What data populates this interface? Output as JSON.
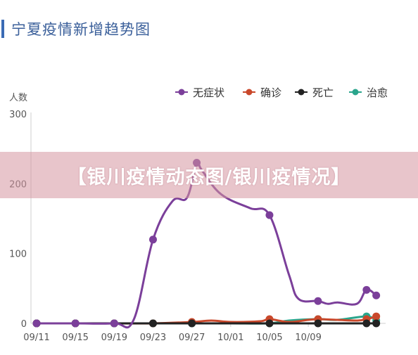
{
  "header": {
    "title": "宁夏疫情新增趋势图"
  },
  "banner": {
    "text": "【银川疫情动态图/银川疫情况】"
  },
  "chart_data": {
    "type": "line",
    "ylabel": "人数",
    "ylim": [
      0,
      300
    ],
    "yticks": [
      "0",
      "100",
      "200",
      "300"
    ],
    "xticks": [
      "09/11",
      "09/15",
      "09/19",
      "09/23",
      "09/27",
      "10/01",
      "10/05",
      "10/09"
    ],
    "x_start": "09/11",
    "legend_position": "top-right",
    "grid": false,
    "smooth": true,
    "series": [
      {
        "name": "无症状",
        "color": "#7b3f9a",
        "points": [
          [
            0,
            0
          ],
          [
            4,
            0
          ],
          [
            8,
            0
          ],
          [
            10,
            5
          ],
          [
            12,
            120
          ],
          [
            14,
            175
          ],
          [
            15.5,
            180
          ],
          [
            16.5,
            230
          ],
          [
            17,
            220
          ],
          [
            19,
            185
          ],
          [
            22,
            165
          ],
          [
            24,
            155
          ],
          [
            26,
            70
          ],
          [
            27,
            35
          ],
          [
            29,
            32
          ],
          [
            30,
            28
          ],
          [
            31,
            30
          ],
          [
            33,
            28
          ],
          [
            34,
            48
          ],
          [
            35,
            40
          ]
        ],
        "markers": [
          0,
          4,
          8,
          12,
          16.5,
          24,
          29,
          34,
          35
        ]
      },
      {
        "name": "确诊",
        "color": "#c9482b",
        "points": [
          [
            0,
            0
          ],
          [
            4,
            0
          ],
          [
            8,
            0
          ],
          [
            12,
            0
          ],
          [
            16,
            2
          ],
          [
            18,
            4
          ],
          [
            20,
            2
          ],
          [
            23,
            3
          ],
          [
            24,
            6
          ],
          [
            26,
            2
          ],
          [
            28,
            5
          ],
          [
            29,
            6
          ],
          [
            31,
            5
          ],
          [
            33,
            4
          ],
          [
            34,
            6
          ],
          [
            35,
            10
          ]
        ],
        "markers": [
          0,
          4,
          8,
          12,
          16,
          24,
          29,
          34,
          35
        ]
      },
      {
        "name": "死亡",
        "color": "#222222",
        "points": [
          [
            0,
            0
          ],
          [
            4,
            0
          ],
          [
            8,
            0
          ],
          [
            12,
            0
          ],
          [
            16,
            0
          ],
          [
            20,
            0
          ],
          [
            24,
            0
          ],
          [
            29,
            0
          ],
          [
            34,
            0
          ],
          [
            35,
            0
          ]
        ],
        "markers": [
          0,
          4,
          8,
          12,
          16,
          24,
          29,
          34,
          35
        ]
      },
      {
        "name": "治愈",
        "color": "#2aa58c",
        "points": [
          [
            0,
            0
          ],
          [
            4,
            0
          ],
          [
            8,
            0
          ],
          [
            12,
            0
          ],
          [
            16,
            0
          ],
          [
            20,
            0
          ],
          [
            24,
            0
          ],
          [
            26,
            4
          ],
          [
            29,
            6
          ],
          [
            31,
            5
          ],
          [
            34,
            10
          ],
          [
            35,
            4
          ]
        ],
        "markers": [
          0,
          4,
          8,
          12,
          16,
          24,
          29,
          34,
          35
        ]
      }
    ]
  }
}
